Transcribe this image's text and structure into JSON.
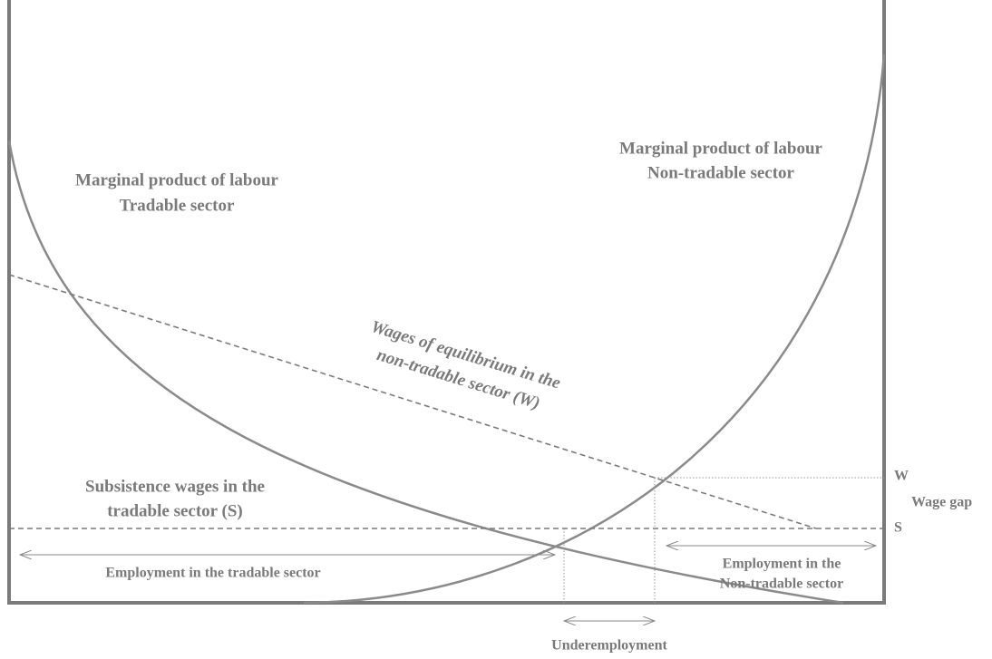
{
  "curves": {
    "tradable": {
      "line1": "Marginal product of labour",
      "line2": "Tradable sector"
    },
    "non_tradable": {
      "line1": "Marginal product of labour",
      "line2": "Non-tradable sector"
    },
    "equilibrium_wage": {
      "line1": "Wages of equilibrium in the",
      "line2": "non-tradable sector (W)"
    },
    "subsistence_wage": {
      "line1": "Subsistence wages in the",
      "line2": "tradable sector (S)"
    }
  },
  "spans": {
    "tradable_employment": "Employment in the tradable sector",
    "non_tradable_employment": {
      "line1": "Employment in the",
      "line2": "Non-tradable sector"
    },
    "underemployment": "Underemployment"
  },
  "levels": {
    "w": "W",
    "wage_gap": "Wage gap",
    "s": "S"
  }
}
